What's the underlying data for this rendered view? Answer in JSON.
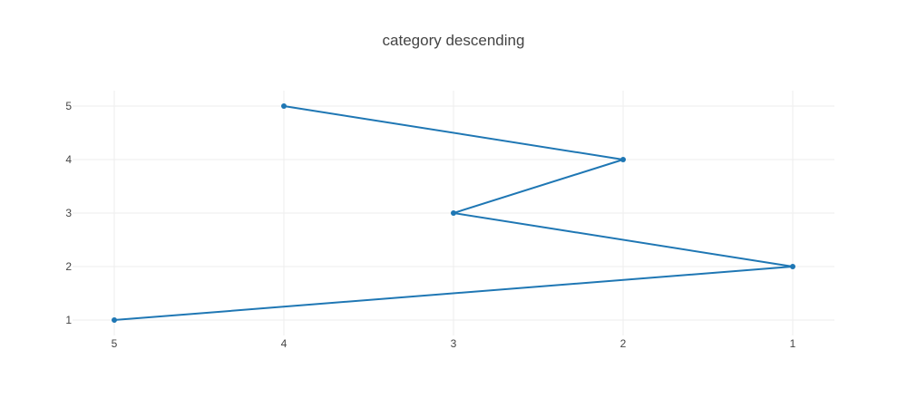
{
  "chart_data": {
    "type": "line",
    "title": "category descending",
    "xlabel": "",
    "ylabel": "",
    "x_categories": [
      "5",
      "4",
      "3",
      "2",
      "1"
    ],
    "y_ticks": [
      "1",
      "2",
      "3",
      "4",
      "5"
    ],
    "ylim": [
      1,
      5
    ],
    "grid": true,
    "legend": "none",
    "series": [
      {
        "x": [
          "5",
          "1",
          "3",
          "2",
          "4"
        ],
        "y": [
          1,
          2,
          3,
          4,
          5
        ],
        "color": "#1f77b4",
        "mode": "lines+markers"
      }
    ]
  }
}
